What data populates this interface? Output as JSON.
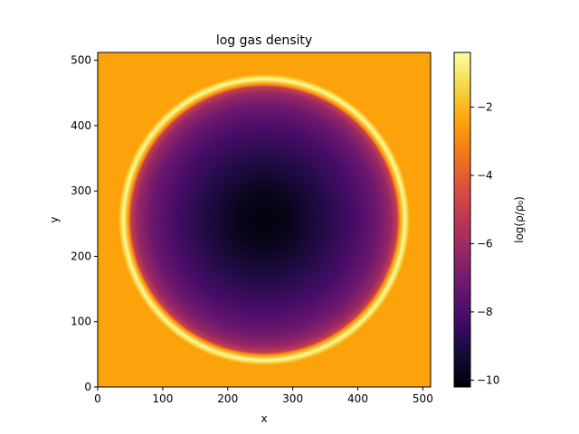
{
  "chart_data": {
    "type": "heatmap",
    "title": "log gas density",
    "xlabel": "x",
    "ylabel": "y",
    "xlim": [
      0,
      512
    ],
    "ylim": [
      0,
      512
    ],
    "xticks": [
      0,
      100,
      200,
      300,
      400,
      500
    ],
    "yticks": [
      0,
      100,
      200,
      300,
      400,
      500
    ],
    "grid": false,
    "colormap": "inferno",
    "colorbar": {
      "label": "log(ρ/ρ₀)",
      "range": [
        -10.2,
        -0.4
      ],
      "ticks": [
        -10,
        -8,
        -6,
        -4,
        -2
      ],
      "tick_labels": [
        "−10",
        "−8",
        "−6",
        "−4",
        "−2"
      ]
    },
    "field": {
      "center": [
        256,
        256
      ],
      "cavity_radius": 205,
      "shell_inner_radius": 207,
      "shell_peak_radius": 216,
      "shell_outer_radius": 224,
      "ambient_value": -2.4,
      "shell_value": -0.5,
      "cavity_center_value": -10.1,
      "cavity_edge_value": -5.0
    }
  }
}
